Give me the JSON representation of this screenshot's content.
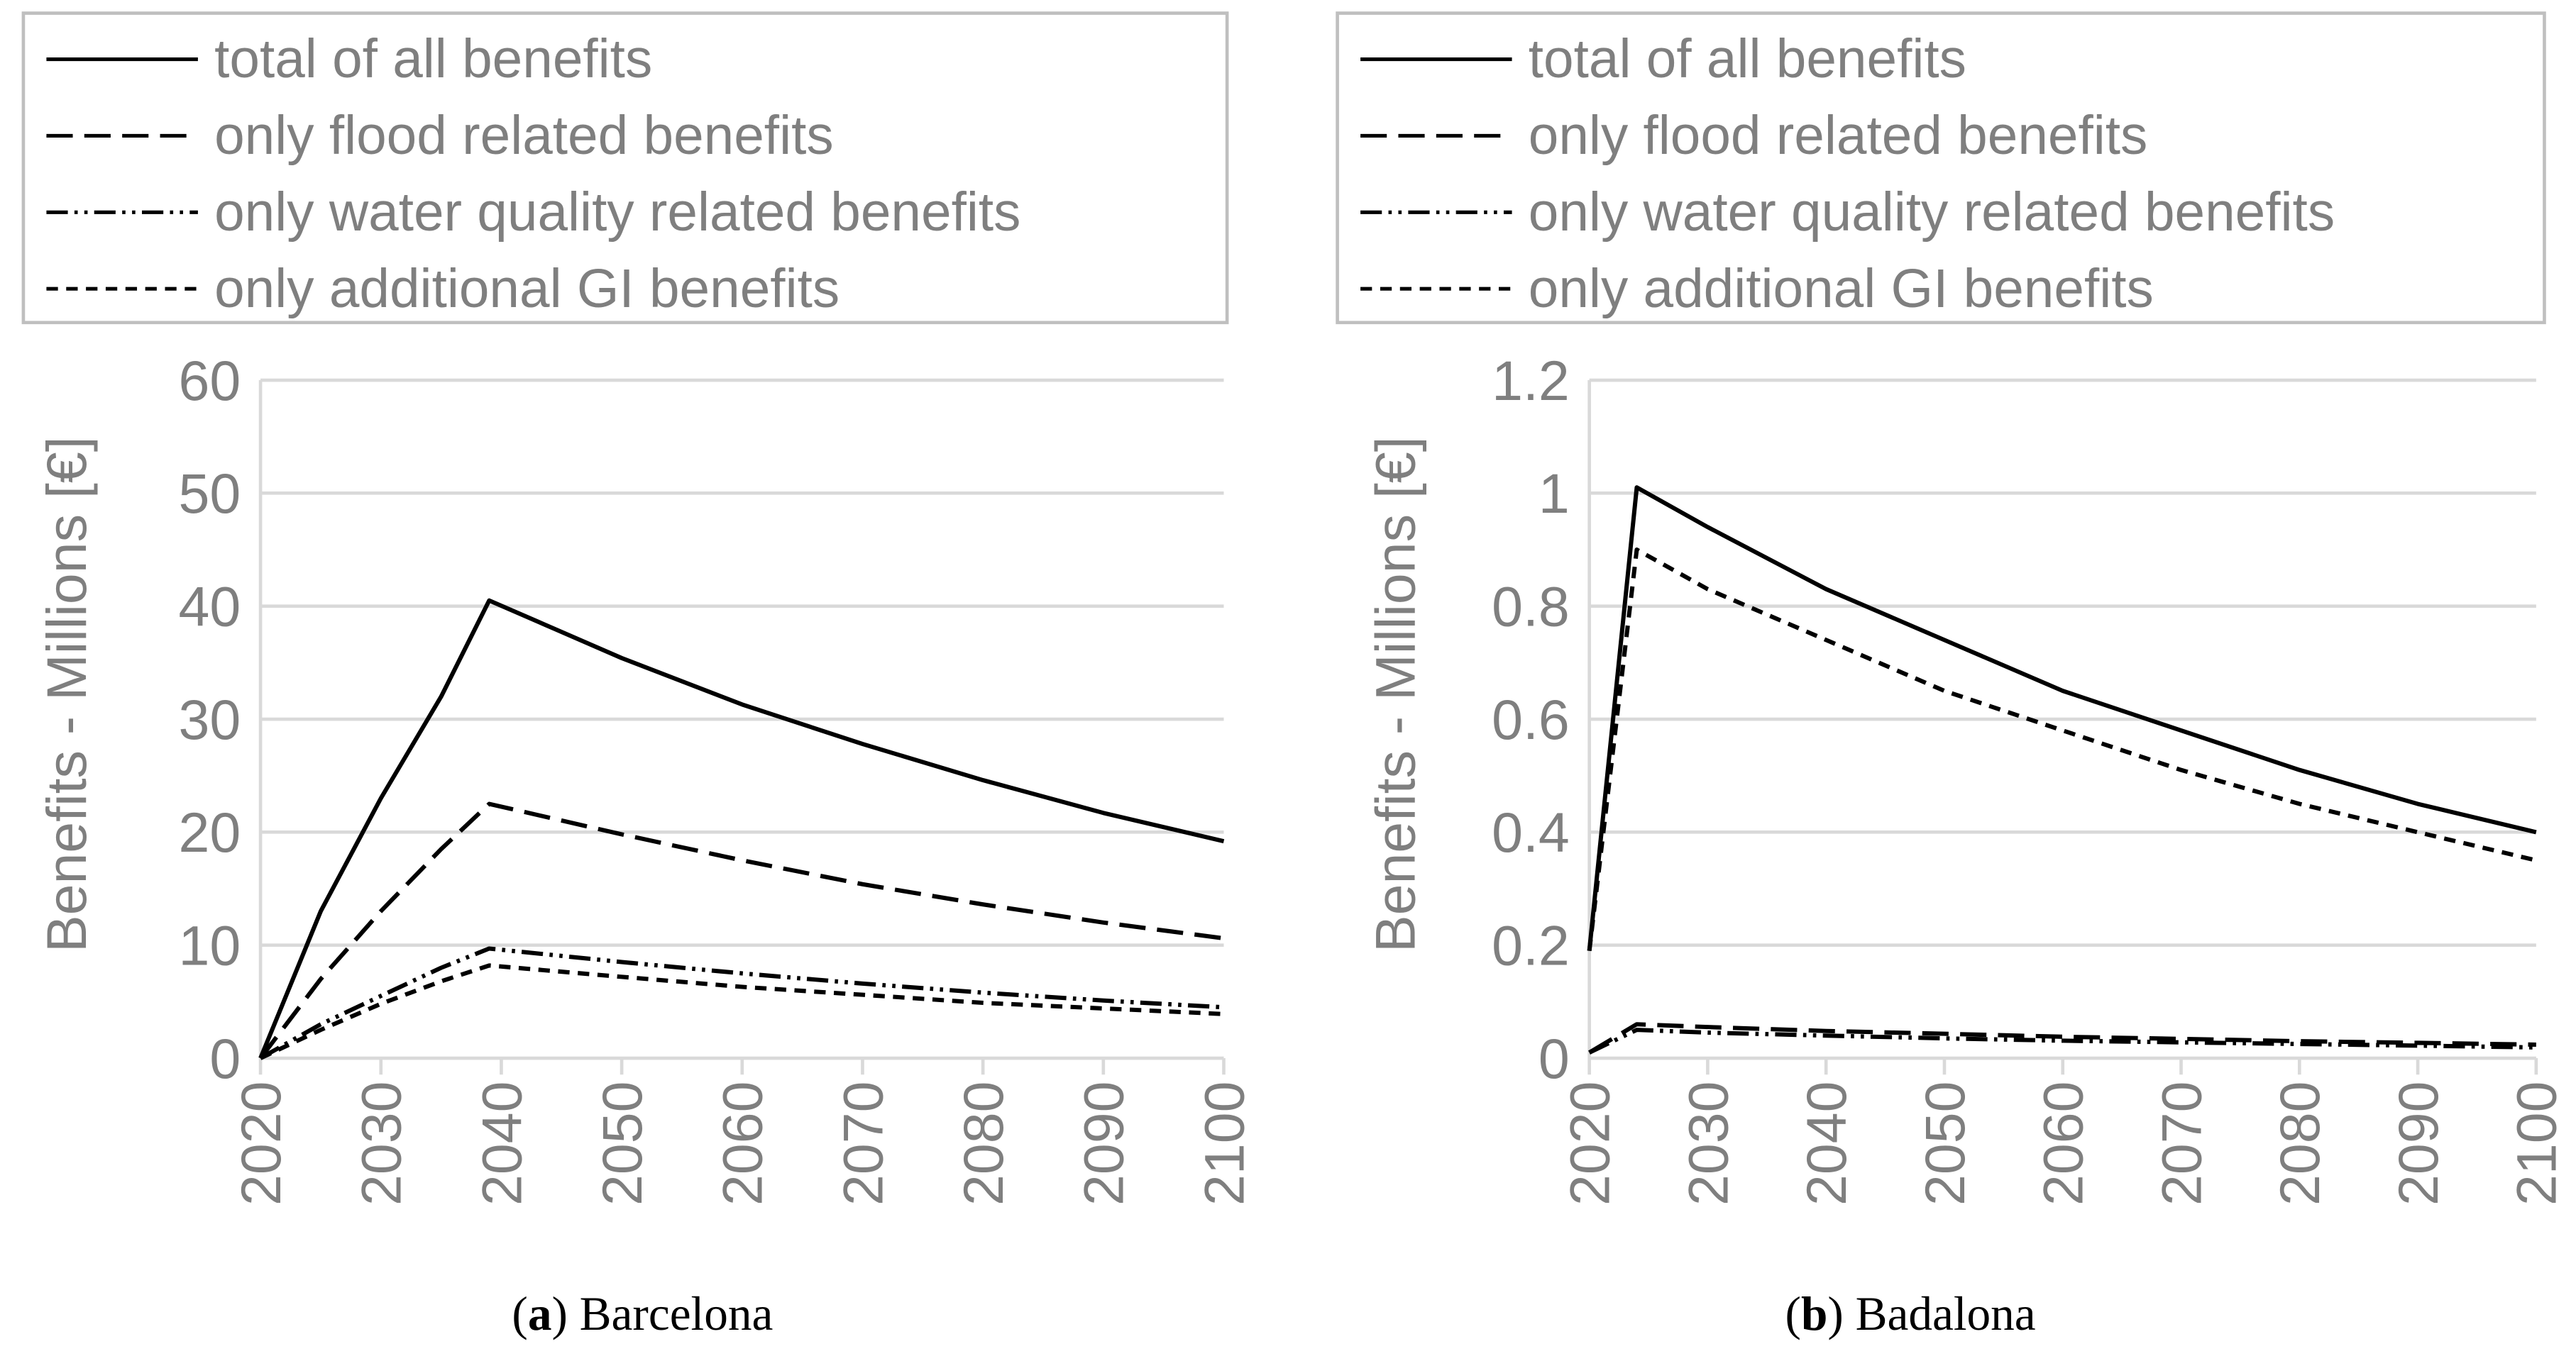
{
  "legend": {
    "items": [
      {
        "label": "total of all benefits",
        "dash": "solid"
      },
      {
        "label": "only flood related benefits",
        "dash": "long-dash"
      },
      {
        "label": "only water quality related benefits",
        "dash": "dash-dot-dot"
      },
      {
        "label": "only additional GI benefits",
        "dash": "short-dash"
      }
    ]
  },
  "chart_data": [
    {
      "type": "line",
      "caption_letter": "a",
      "caption_text": ") Barcelona",
      "caption_open": "(",
      "ylabel": "Benefits - Millions [€]",
      "xlabel": "",
      "ylim": [
        0,
        60
      ],
      "yticks": [
        "0",
        "10",
        "20",
        "30",
        "40",
        "50",
        "60"
      ],
      "ytick_values": [
        0,
        10,
        20,
        30,
        40,
        50,
        60
      ],
      "xlim": [
        2020,
        2100
      ],
      "xticks": [
        "2020",
        "2030",
        "2040",
        "2050",
        "2060",
        "2070",
        "2080",
        "2090",
        "2100"
      ],
      "grid": true,
      "legend_position": "top",
      "x": [
        2020,
        2025,
        2030,
        2035,
        2039,
        2050,
        2060,
        2070,
        2080,
        2090,
        2100
      ],
      "series": [
        {
          "name": "total of all benefits",
          "values": [
            0,
            13,
            23,
            32,
            40.5,
            35.4,
            31.3,
            27.8,
            24.6,
            21.7,
            19.2
          ]
        },
        {
          "name": "only flood related benefits",
          "values": [
            0,
            7,
            13,
            18.5,
            22.5,
            19.8,
            17.5,
            15.4,
            13.6,
            12.0,
            10.6
          ]
        },
        {
          "name": "only water quality related benefits",
          "values": [
            0,
            3,
            5.5,
            8,
            9.7,
            8.5,
            7.5,
            6.6,
            5.8,
            5.1,
            4.5
          ]
        },
        {
          "name": "only additional GI benefits",
          "values": [
            0,
            2.5,
            4.8,
            6.8,
            8.2,
            7.2,
            6.3,
            5.6,
            4.9,
            4.4,
            3.9
          ]
        }
      ]
    },
    {
      "type": "line",
      "caption_letter": "b",
      "caption_text": ") Badalona",
      "caption_open": "(",
      "ylabel": "Benefits - Millions [€]",
      "xlabel": "",
      "ylim": [
        0,
        1.2
      ],
      "yticks": [
        "0",
        "0.2",
        "0.4",
        "0.6",
        "0.8",
        "1",
        "1.2"
      ],
      "ytick_values": [
        0,
        0.2,
        0.4,
        0.6,
        0.8,
        1,
        1.2
      ],
      "xlim": [
        2020,
        2100
      ],
      "xticks": [
        "2020",
        "2030",
        "2040",
        "2050",
        "2060",
        "2070",
        "2080",
        "2090",
        "2100"
      ],
      "grid": true,
      "legend_position": "top",
      "x": [
        2020,
        2024,
        2030,
        2040,
        2050,
        2060,
        2070,
        2080,
        2090,
        2100
      ],
      "series": [
        {
          "name": "total of all benefits",
          "values": [
            0.19,
            1.01,
            0.94,
            0.83,
            0.74,
            0.65,
            0.58,
            0.51,
            0.45,
            0.4
          ]
        },
        {
          "name": "only flood related benefits",
          "values": [
            0.01,
            0.06,
            0.055,
            0.048,
            0.043,
            0.038,
            0.034,
            0.03,
            0.027,
            0.024
          ]
        },
        {
          "name": "only water quality related benefits",
          "values": [
            0.01,
            0.05,
            0.045,
            0.04,
            0.035,
            0.031,
            0.028,
            0.025,
            0.022,
            0.019
          ]
        },
        {
          "name": "only additional GI benefits",
          "values": [
            0.19,
            0.9,
            0.83,
            0.74,
            0.65,
            0.58,
            0.51,
            0.45,
            0.4,
            0.35
          ]
        }
      ]
    }
  ]
}
